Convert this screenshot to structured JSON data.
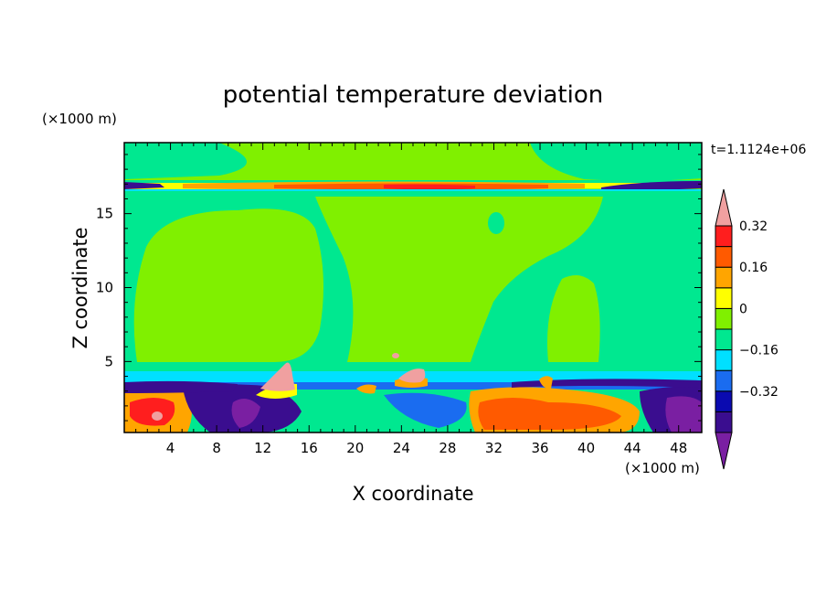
{
  "chart_data": {
    "type": "heatmap",
    "title": "potential temperature deviation",
    "xlabel": "X coordinate",
    "ylabel": "Z coordinate",
    "x_unit": "(×1000 m)",
    "y_unit": "(×1000 m)",
    "time_label": "t=1.1124e+06",
    "xlim": [
      0,
      50
    ],
    "ylim": [
      0.2,
      19.8
    ],
    "x_ticks": [
      4,
      8,
      12,
      16,
      20,
      24,
      28,
      32,
      36,
      40,
      44,
      48
    ],
    "x_tick_labels": [
      "4",
      "8",
      "12",
      "16",
      "20",
      "24",
      "28",
      "32",
      "36",
      "40",
      "44",
      "48"
    ],
    "y_ticks": [
      5,
      10,
      15
    ],
    "y_tick_labels": [
      "5",
      "10",
      "15"
    ],
    "colorbar": {
      "levels": [
        -0.48,
        -0.4,
        -0.32,
        -0.24,
        -0.16,
        -0.08,
        0,
        0.08,
        0.16,
        0.24,
        0.32,
        0.4
      ],
      "colors": [
        "#7a1fa2",
        "#3a0d8f",
        "#0a0ab0",
        "#1a6cf0",
        "#00e0ff",
        "#00e890",
        "#80f000",
        "#ffff00",
        "#ffa500",
        "#ff5a00",
        "#ff1e1e",
        "#f0a0a0"
      ],
      "tick_values": [
        0.32,
        0.16,
        0,
        -0.16,
        -0.32
      ],
      "tick_labels": [
        "0.32",
        "0.16",
        "0",
        "−0.16",
        "−0.32"
      ]
    },
    "regions": [
      {
        "level": 0.04,
        "note": "upper background",
        "x": [
          0,
          50
        ],
        "z": [
          17.2,
          19.8
        ]
      },
      {
        "level": -0.04,
        "note": "mid troposphere background",
        "x": [
          0,
          50
        ],
        "z": [
          3.9,
          16.6
        ]
      },
      {
        "level": 0.28,
        "note": "warm band near tropopause",
        "x": [
          18,
          38
        ],
        "z": [
          16.6,
          17.2
        ]
      },
      {
        "level": -0.36,
        "note": "cold band near tropopause west",
        "x": [
          0,
          3
        ],
        "z": [
          16.7,
          17.2
        ]
      },
      {
        "level": -0.36,
        "note": "cold band near tropopause east",
        "x": [
          41,
          50
        ],
        "z": [
          16.7,
          17.2
        ]
      },
      {
        "level": 0.04,
        "note": "warm column west",
        "x": [
          1,
          15
        ],
        "z": [
          5,
          15
        ]
      },
      {
        "level": 0.04,
        "note": "warm column center",
        "x": [
          17,
          38
        ],
        "z": [
          4,
          16.5
        ]
      },
      {
        "level": 0.04,
        "note": "warm column east",
        "x": [
          36.5,
          41.5
        ],
        "z": [
          4.5,
          10.5
        ]
      },
      {
        "level": -0.12,
        "note": "cool layer above boundary layer",
        "x": [
          0,
          50
        ],
        "z": [
          3.5,
          4.1
        ]
      },
      {
        "level": -0.4,
        "note": "cold pool west",
        "x": [
          8,
          16
        ],
        "z": [
          0.2,
          3.2
        ]
      },
      {
        "level": -0.4,
        "note": "cold pool east",
        "x": [
          45,
          50
        ],
        "z": [
          0.2,
          3.2
        ]
      },
      {
        "level": 0.32,
        "note": "warm boundary layer far west",
        "x": [
          0,
          4
        ],
        "z": [
          0.4,
          3
        ]
      },
      {
        "level": 0.28,
        "note": "warm boundary layer east",
        "x": [
          30,
          45
        ],
        "z": [
          0.2,
          3
        ]
      },
      {
        "level": 0.44,
        "note": "warm anomaly plume",
        "x": [
          12,
          15
        ],
        "z": [
          2.9,
          4.8
        ]
      },
      {
        "level": 0.44,
        "note": "warm anomaly plume",
        "x": [
          23,
          26
        ],
        "z": [
          3.5,
          4.5
        ]
      }
    ]
  }
}
